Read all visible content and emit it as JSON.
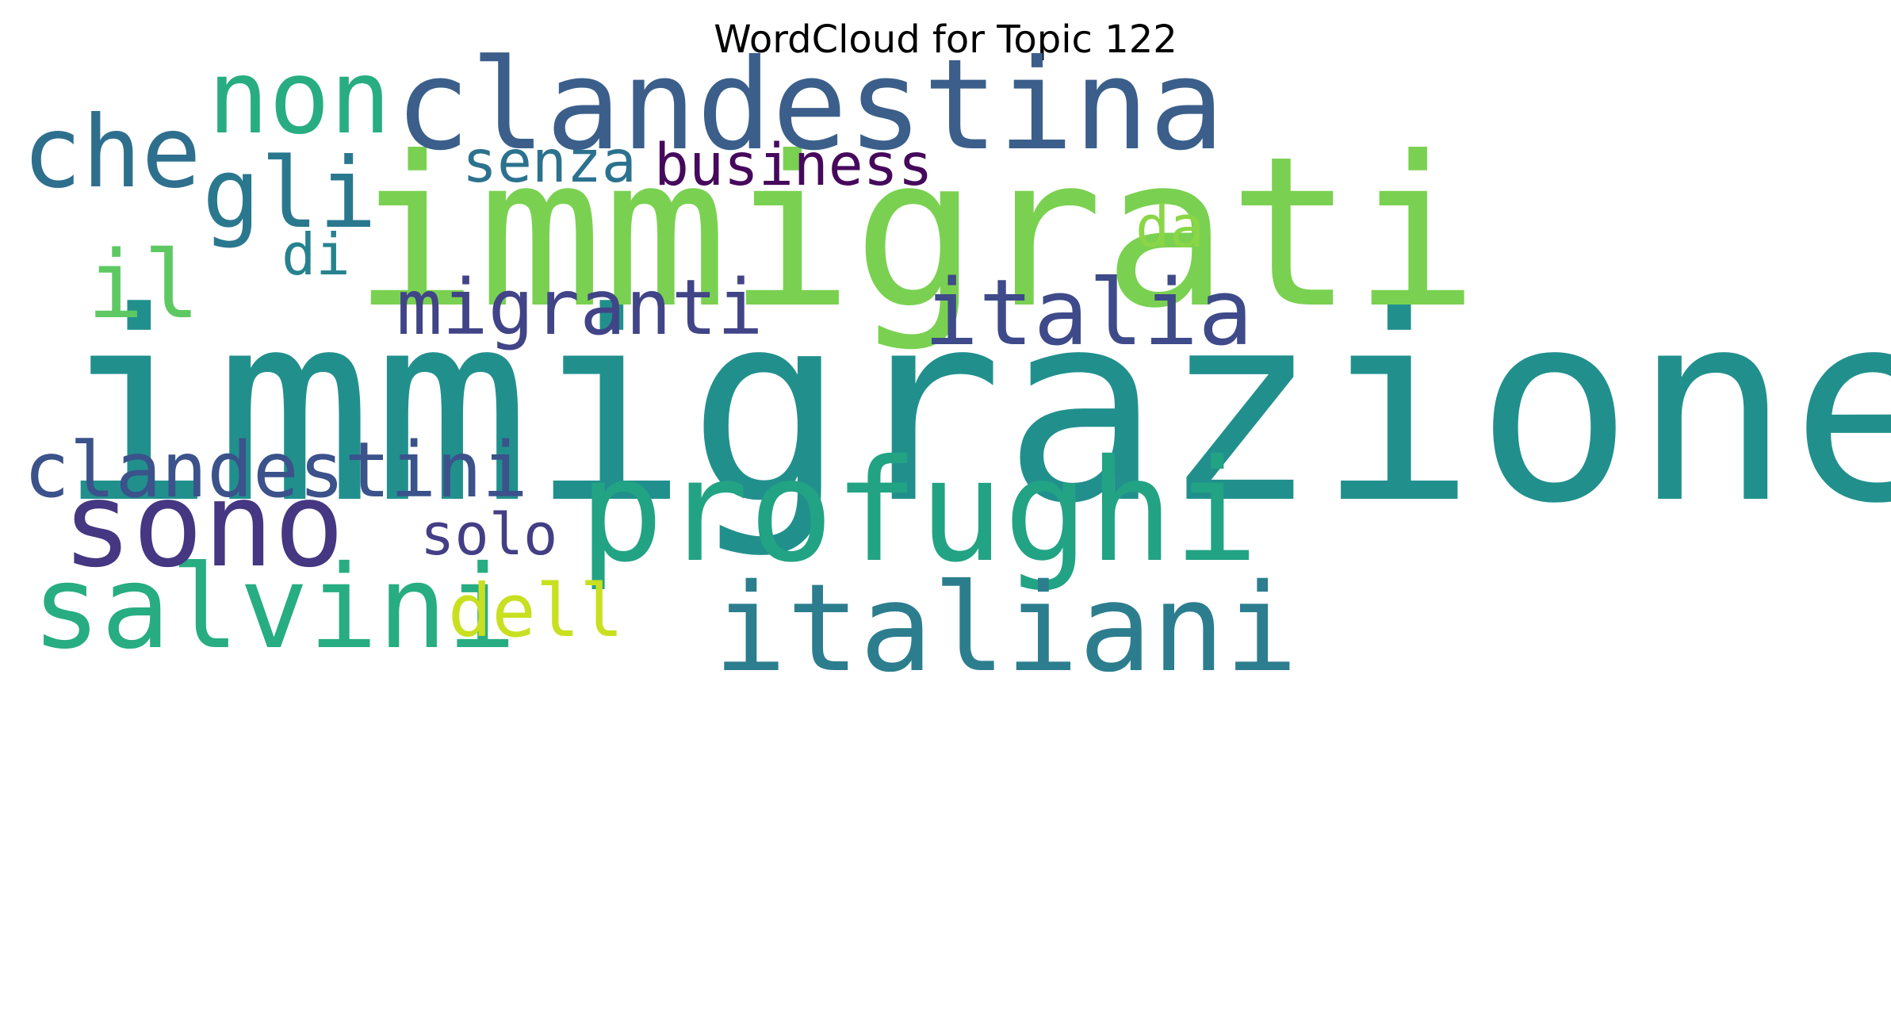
{
  "title": "WordCloud for Topic 122",
  "words": [
    {
      "id": "immigrazione",
      "text": "immigrazione",
      "color": "#21908d"
    },
    {
      "id": "immigrati",
      "text": "immigrati",
      "color": "#7ad151"
    },
    {
      "id": "clandestina",
      "text": "clandestina",
      "color": "#3b5f8a"
    },
    {
      "id": "profughi",
      "text": "profughi",
      "color": "#22a384"
    },
    {
      "id": "italiani",
      "text": "italiani",
      "color": "#2c7e8e"
    },
    {
      "id": "salvini",
      "text": "salvini",
      "color": "#27ad81"
    },
    {
      "id": "sono",
      "text": "sono",
      "color": "#453781"
    },
    {
      "id": "che",
      "text": "che",
      "color": "#2e6f8e"
    },
    {
      "id": "non",
      "text": "non",
      "color": "#27ad81"
    },
    {
      "id": "italia",
      "text": "italia",
      "color": "#3e4a89"
    },
    {
      "id": "gli",
      "text": "gli",
      "color": "#2a788e"
    },
    {
      "id": "clandestini",
      "text": "clandestini",
      "color": "#3b528b"
    },
    {
      "id": "migranti",
      "text": "migranti",
      "color": "#414487"
    },
    {
      "id": "il",
      "text": "il",
      "color": "#5ec962"
    },
    {
      "id": "business",
      "text": "business",
      "color": "#46085c"
    },
    {
      "id": "senza",
      "text": "senza",
      "color": "#2c728e"
    },
    {
      "id": "dell",
      "text": "dell",
      "color": "#c8e020"
    },
    {
      "id": "solo",
      "text": "solo",
      "color": "#433e85"
    },
    {
      "id": "di",
      "text": "di",
      "color": "#26828e"
    },
    {
      "id": "da",
      "text": "da",
      "color": "#8bd646"
    }
  ]
}
